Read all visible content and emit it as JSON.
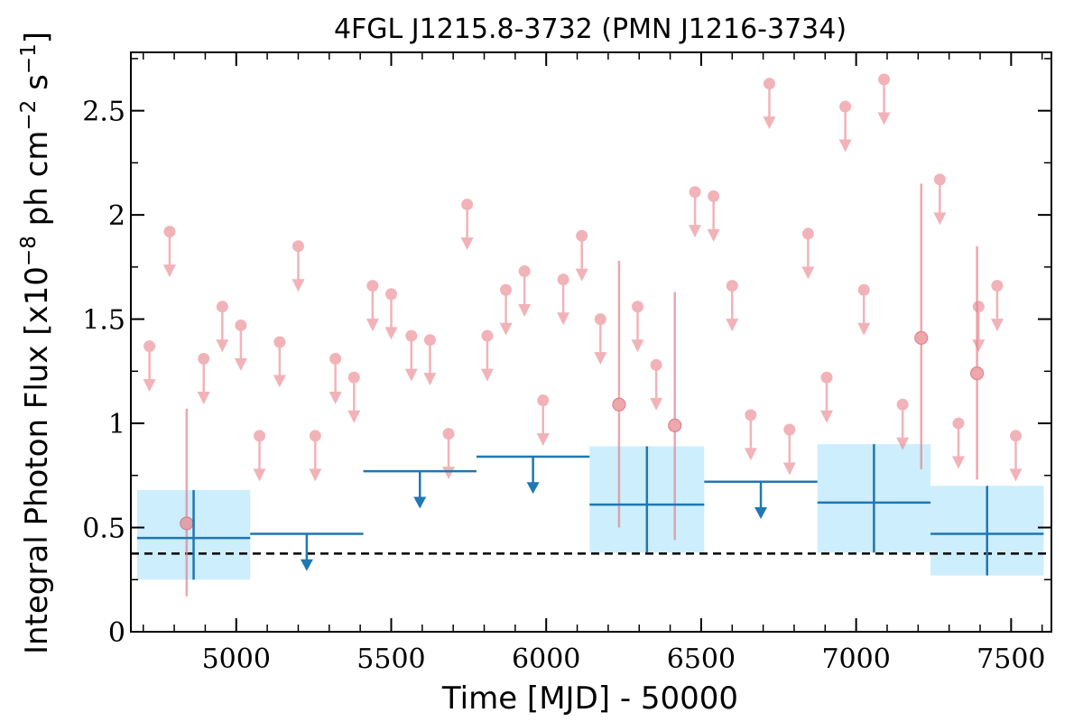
{
  "chart_data": {
    "type": "scatter",
    "title": "4FGL J1215.8-3732 (PMN J1216-3734)",
    "xlabel": "Time [MJD] - 50000",
    "ylabel": "Integral Photon Flux [x10^-8 ph cm^-2 s^-1]",
    "xlim": [
      4660,
      7630
    ],
    "ylim": [
      0,
      2.78
    ],
    "x_ticks": [
      5000,
      5500,
      6000,
      6500,
      7000,
      7500
    ],
    "y_ticks": [
      0,
      0.5,
      1,
      1.5,
      2,
      2.5
    ],
    "y_tick_labels": [
      "0",
      "0.5",
      "1",
      "1.5",
      "2",
      "2.5"
    ],
    "reference_level": 0.375,
    "colors": {
      "fine": "#e8828a",
      "coarse": "#1f77b4",
      "band": "#cdeefc",
      "reference": "#000000"
    },
    "fine_upper_limits": [
      {
        "x": 4720,
        "y": 1.37
      },
      {
        "x": 4785,
        "y": 1.92
      },
      {
        "x": 4895,
        "y": 1.31
      },
      {
        "x": 4955,
        "y": 1.56
      },
      {
        "x": 5015,
        "y": 1.47
      },
      {
        "x": 5075,
        "y": 0.94
      },
      {
        "x": 5140,
        "y": 1.39
      },
      {
        "x": 5200,
        "y": 1.85
      },
      {
        "x": 5255,
        "y": 0.94
      },
      {
        "x": 5320,
        "y": 1.31
      },
      {
        "x": 5380,
        "y": 1.22
      },
      {
        "x": 5440,
        "y": 1.66
      },
      {
        "x": 5500,
        "y": 1.62
      },
      {
        "x": 5565,
        "y": 1.42
      },
      {
        "x": 5625,
        "y": 1.4
      },
      {
        "x": 5685,
        "y": 0.95
      },
      {
        "x": 5745,
        "y": 2.05
      },
      {
        "x": 5810,
        "y": 1.42
      },
      {
        "x": 5870,
        "y": 1.64
      },
      {
        "x": 5930,
        "y": 1.73
      },
      {
        "x": 5990,
        "y": 1.11
      },
      {
        "x": 6055,
        "y": 1.69
      },
      {
        "x": 6115,
        "y": 1.9
      },
      {
        "x": 6175,
        "y": 1.5
      },
      {
        "x": 6295,
        "y": 1.56
      },
      {
        "x": 6355,
        "y": 1.28
      },
      {
        "x": 6480,
        "y": 2.11
      },
      {
        "x": 6540,
        "y": 2.09
      },
      {
        "x": 6600,
        "y": 1.66
      },
      {
        "x": 6660,
        "y": 1.04
      },
      {
        "x": 6720,
        "y": 2.63
      },
      {
        "x": 6785,
        "y": 0.97
      },
      {
        "x": 6845,
        "y": 1.91
      },
      {
        "x": 6905,
        "y": 1.22
      },
      {
        "x": 6965,
        "y": 2.52
      },
      {
        "x": 7025,
        "y": 1.64
      },
      {
        "x": 7090,
        "y": 2.65
      },
      {
        "x": 7150,
        "y": 1.09
      },
      {
        "x": 7270,
        "y": 2.17
      },
      {
        "x": 7330,
        "y": 1.0
      },
      {
        "x": 7395,
        "y": 1.56
      },
      {
        "x": 7455,
        "y": 1.66
      },
      {
        "x": 7515,
        "y": 0.94
      }
    ],
    "fine_detections": [
      {
        "x": 4840,
        "y": 0.52,
        "ylo": 0.17,
        "yhi": 1.07
      },
      {
        "x": 6235,
        "y": 1.09,
        "ylo": 0.5,
        "yhi": 1.78
      },
      {
        "x": 6415,
        "y": 0.99,
        "ylo": 0.44,
        "yhi": 1.63
      },
      {
        "x": 7210,
        "y": 1.41,
        "ylo": 0.78,
        "yhi": 2.15
      },
      {
        "x": 7390,
        "y": 1.24,
        "ylo": 0.73,
        "yhi": 1.85
      }
    ],
    "coarse_upper_limits": [
      {
        "x0": 5045,
        "x1": 5410,
        "y": 0.47
      },
      {
        "x0": 5410,
        "x1": 5775,
        "y": 0.77
      },
      {
        "x0": 5775,
        "x1": 6140,
        "y": 0.84
      },
      {
        "x0": 6510,
        "x1": 6875,
        "y": 0.72
      }
    ],
    "coarse_detections": [
      {
        "x0": 4680,
        "x1": 5045,
        "y": 0.45,
        "ylo": 0.25,
        "yhi": 0.68
      },
      {
        "x0": 6140,
        "x1": 6510,
        "y": 0.61,
        "ylo": 0.38,
        "yhi": 0.89
      },
      {
        "x0": 6875,
        "x1": 7240,
        "y": 0.62,
        "ylo": 0.38,
        "yhi": 0.9
      },
      {
        "x0": 7240,
        "x1": 7605,
        "y": 0.47,
        "ylo": 0.27,
        "yhi": 0.7
      }
    ]
  }
}
